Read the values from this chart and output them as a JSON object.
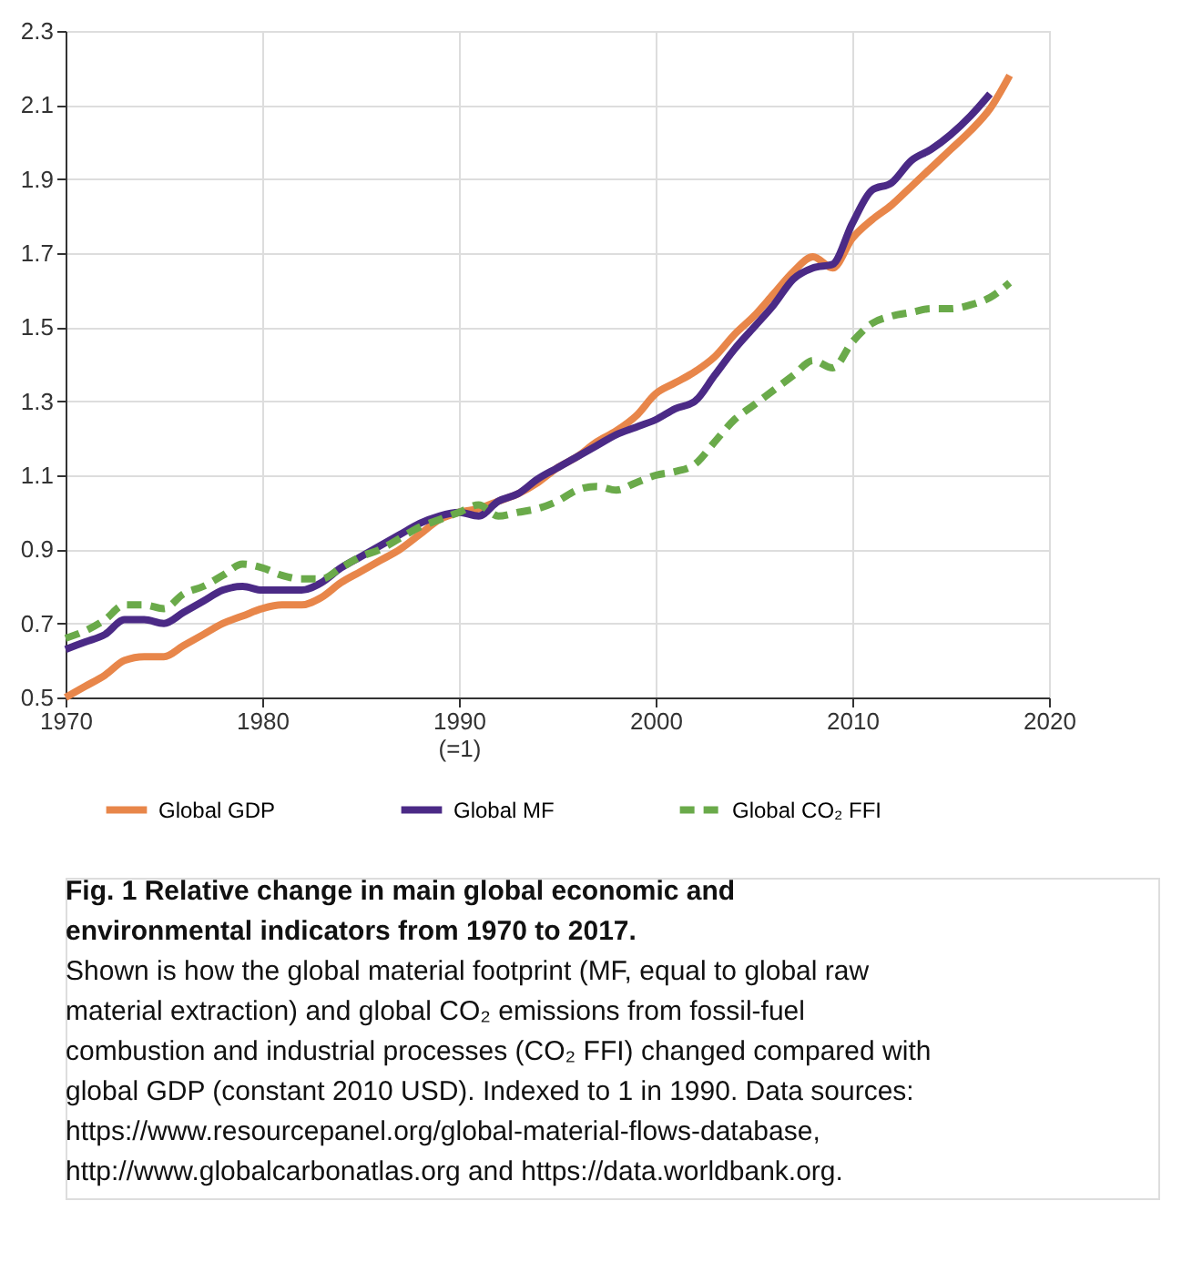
{
  "chart_data": {
    "type": "line",
    "title": "Fig. 1 Relative change in main global economic and environmental indicators from 1970 to 2017.",
    "annotations": [
      "Shown is how the global material footprint (MF, equal to global raw material extraction) and global CO₂ emissions from fossil-fuel combustion and industrial processes (CO₂ FFI) changed compared with global GDP (constant 2010 USD). Indexed to 1 in 1990. Data sources: https://www.resourcepanel.org/global-material-flows-database, http://www.globalcarbonatlas.org and https://data.worldbank.org."
    ],
    "x": [
      1970,
      1971,
      1972,
      1973,
      1974,
      1975,
      1976,
      1977,
      1978,
      1979,
      1980,
      1981,
      1982,
      1983,
      1984,
      1985,
      1986,
      1987,
      1988,
      1989,
      1990,
      1991,
      1992,
      1993,
      1994,
      1995,
      1996,
      1997,
      1998,
      1999,
      2000,
      2001,
      2002,
      2003,
      2004,
      2005,
      2006,
      2007,
      2008,
      2009,
      2010,
      2011,
      2012,
      2013,
      2014,
      2015,
      2016,
      2017,
      2018
    ],
    "series": [
      {
        "name": "Global GDP",
        "color": "#e8864a",
        "line_style": "solid",
        "values": [
          0.5,
          0.53,
          0.56,
          0.6,
          0.61,
          0.61,
          0.64,
          0.67,
          0.7,
          0.72,
          0.74,
          0.75,
          0.75,
          0.77,
          0.81,
          0.84,
          0.87,
          0.9,
          0.94,
          0.98,
          1.0,
          1.01,
          1.03,
          1.05,
          1.08,
          1.12,
          1.15,
          1.19,
          1.22,
          1.26,
          1.32,
          1.35,
          1.38,
          1.42,
          1.48,
          1.53,
          1.59,
          1.65,
          1.69,
          1.66,
          1.74,
          1.79,
          1.83,
          1.88,
          1.93,
          1.98,
          2.03,
          2.09,
          2.18
        ]
      },
      {
        "name": "Global MF",
        "color": "#4b2a86",
        "line_style": "solid",
        "values": [
          0.63,
          0.65,
          0.67,
          0.71,
          0.71,
          0.7,
          0.73,
          0.76,
          0.79,
          0.8,
          0.79,
          0.79,
          0.79,
          0.81,
          0.85,
          0.88,
          0.91,
          0.94,
          0.97,
          0.99,
          1.0,
          0.99,
          1.03,
          1.05,
          1.09,
          1.12,
          1.15,
          1.18,
          1.21,
          1.23,
          1.25,
          1.28,
          1.3,
          1.37,
          1.44,
          1.5,
          1.56,
          1.63,
          1.66,
          1.67,
          1.78,
          1.87,
          1.89,
          1.95,
          1.98,
          2.02,
          2.07,
          2.13,
          null
        ]
      },
      {
        "name": "Global CO₂ FFI",
        "color": "#6aaa4a",
        "line_style": "dashed",
        "values": [
          0.66,
          0.68,
          0.71,
          0.75,
          0.75,
          0.74,
          0.78,
          0.8,
          0.83,
          0.86,
          0.85,
          0.83,
          0.82,
          0.82,
          0.85,
          0.88,
          0.9,
          0.93,
          0.96,
          0.98,
          1.0,
          1.02,
          0.99,
          1.0,
          1.01,
          1.03,
          1.06,
          1.07,
          1.06,
          1.08,
          1.1,
          1.11,
          1.13,
          1.19,
          1.25,
          1.29,
          1.33,
          1.37,
          1.41,
          1.39,
          1.46,
          1.51,
          1.53,
          1.54,
          1.55,
          1.55,
          1.56,
          1.58,
          1.62
        ]
      }
    ],
    "xlim": [
      1970,
      2020
    ],
    "xticks": [
      1970,
      1980,
      {
        "value": 1990,
        "label": "1990\n(=1)"
      },
      2000,
      2010,
      2020
    ],
    "ylim": [
      0.5,
      2.3
    ],
    "yticks": [
      0.5,
      0.7,
      0.9,
      1.1,
      1.3,
      1.5,
      1.7,
      1.9,
      2.1,
      2.3
    ],
    "grid": true,
    "legend": "bottom"
  }
}
